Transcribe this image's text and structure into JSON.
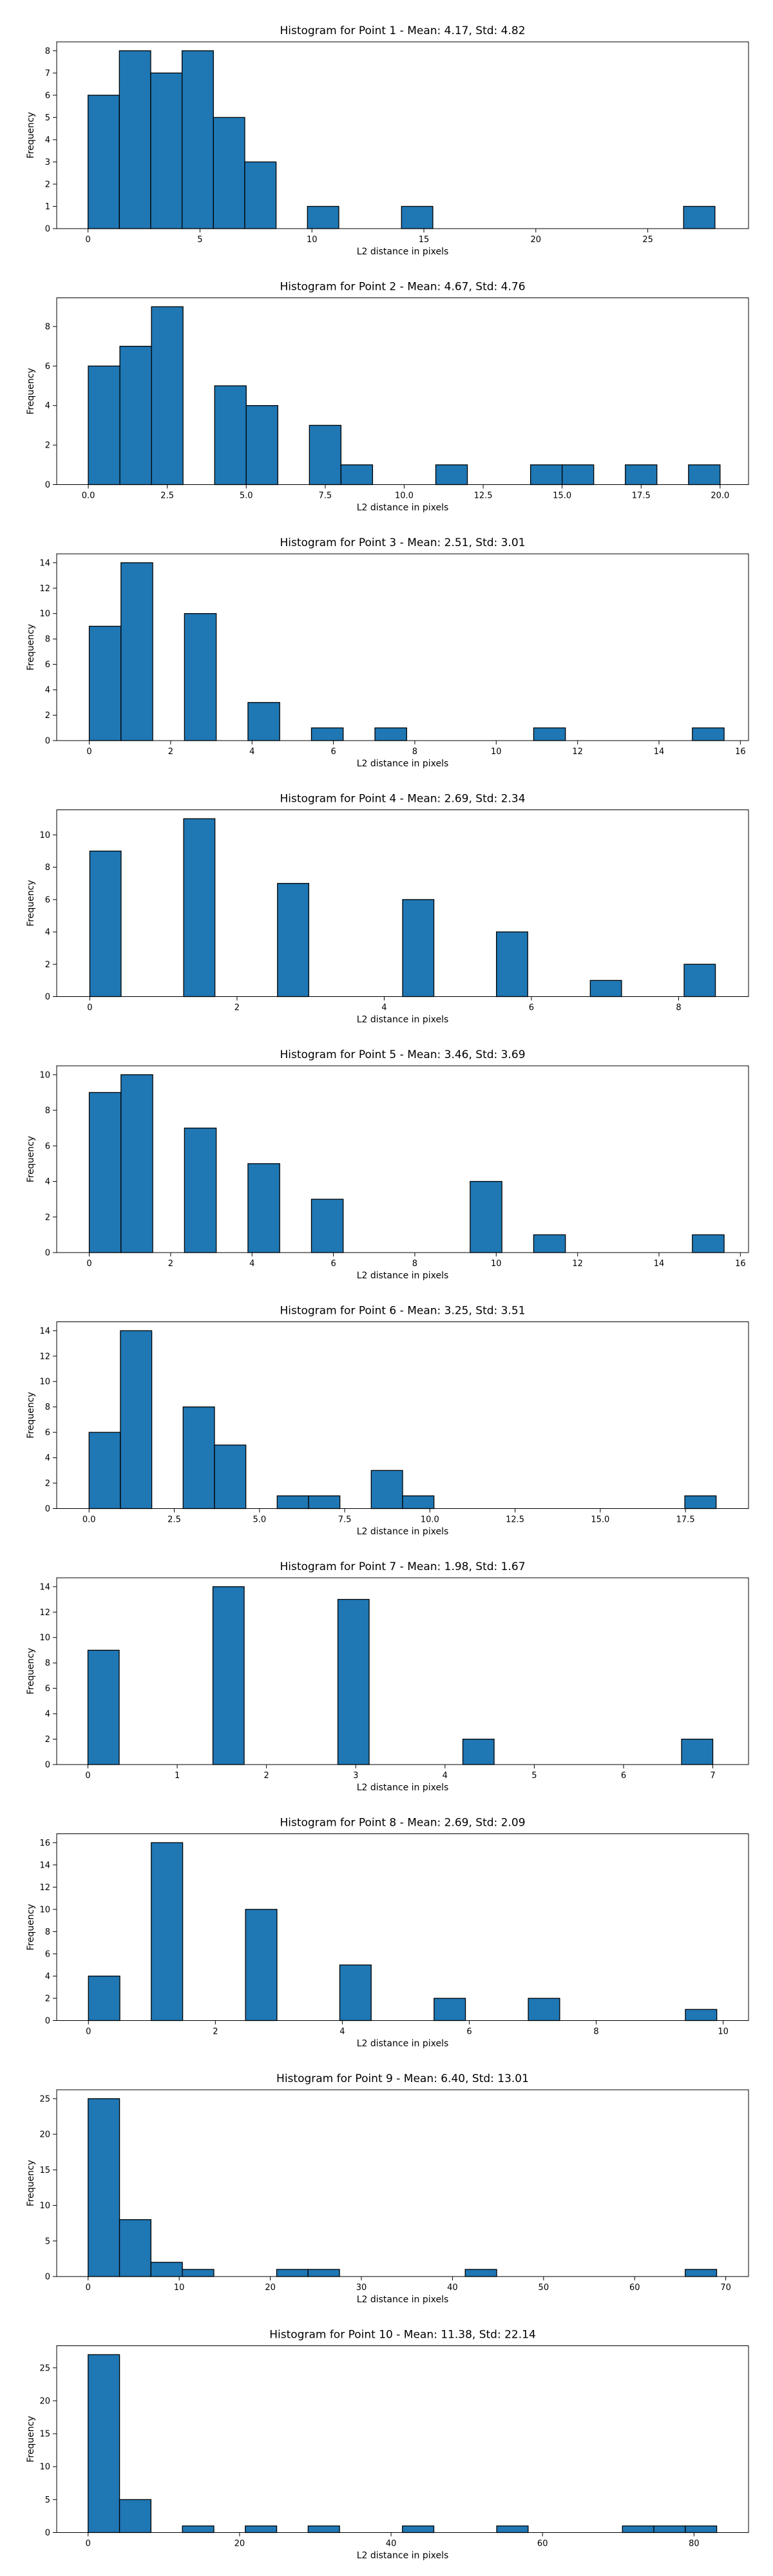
{
  "bar_color": "#1f77b4",
  "edge_color": "#000000",
  "chart_data": [
    {
      "type": "bar",
      "title": "Histogram for Point 1 - Mean: 4.17, Std: 4.82",
      "xlabel": "L2 distance in pixels",
      "ylabel": "Frequency",
      "xlim": [
        -1.4,
        29.5
      ],
      "ylim": [
        0,
        8.4
      ],
      "xticks": [
        0,
        5,
        10,
        15,
        20,
        25
      ],
      "xtick_labels": [
        "0",
        "5",
        "10",
        "15",
        "20",
        "25"
      ],
      "yticks": [
        0,
        1,
        2,
        3,
        4,
        5,
        6,
        7,
        8
      ],
      "ytick_labels": [
        "0",
        "1",
        "2",
        "3",
        "4",
        "5",
        "6",
        "7",
        "8"
      ],
      "bin_edges": [
        0,
        1.4,
        2.8,
        4.2,
        5.6,
        7.0,
        8.4,
        9.8,
        11.2,
        12.6,
        14.0,
        15.4,
        16.8,
        18.2,
        19.6,
        21.0,
        22.4,
        23.8,
        25.2,
        26.6,
        28.0
      ],
      "counts": [
        6,
        8,
        7,
        8,
        5,
        3,
        0,
        1,
        0,
        0,
        1,
        0,
        0,
        0,
        0,
        0,
        0,
        0,
        0,
        1
      ]
    },
    {
      "type": "bar",
      "title": "Histogram for Point 2 - Mean: 4.67, Std: 4.76",
      "xlabel": "L2 distance in pixels",
      "ylabel": "Frequency",
      "xlim": [
        -1.0,
        20.9
      ],
      "ylim": [
        0,
        9.45
      ],
      "xticks": [
        0,
        2.5,
        5,
        7.5,
        10,
        12.5,
        15,
        17.5,
        20
      ],
      "xtick_labels": [
        "0.0",
        "2.5",
        "5.0",
        "7.5",
        "10.0",
        "12.5",
        "15.0",
        "17.5",
        "20.0"
      ],
      "yticks": [
        0,
        2,
        4,
        6,
        8
      ],
      "ytick_labels": [
        "0",
        "2",
        "4",
        "6",
        "8"
      ],
      "bin_edges": [
        0,
        1.0,
        2.0,
        3.0,
        4.0,
        5.0,
        6.0,
        7.0,
        8.0,
        9.0,
        10.0,
        11.0,
        12.0,
        13.0,
        14.0,
        15.0,
        16.0,
        17.0,
        18.0,
        19.0,
        20.0
      ],
      "counts": [
        6,
        7,
        9,
        0,
        5,
        4,
        0,
        3,
        1,
        0,
        0,
        1,
        0,
        0,
        1,
        1,
        0,
        1,
        0,
        1
      ]
    },
    {
      "type": "bar",
      "title": "Histogram for Point 3 - Mean: 2.51, Std: 3.01",
      "xlabel": "L2 distance in pixels",
      "ylabel": "Frequency",
      "xlim": [
        -0.8,
        16.2
      ],
      "ylim": [
        0,
        14.7
      ],
      "xticks": [
        0,
        2,
        4,
        6,
        8,
        10,
        12,
        14,
        16
      ],
      "xtick_labels": [
        "0",
        "2",
        "4",
        "6",
        "8",
        "10",
        "12",
        "14",
        "16"
      ],
      "yticks": [
        0,
        2,
        4,
        6,
        8,
        10,
        12,
        14
      ],
      "ytick_labels": [
        "0",
        "2",
        "4",
        "6",
        "8",
        "10",
        "12",
        "14"
      ],
      "bin_edges": [
        0,
        0.78,
        1.56,
        2.34,
        3.12,
        3.9,
        4.68,
        5.46,
        6.24,
        7.02,
        7.8,
        8.58,
        9.36,
        10.14,
        10.92,
        11.7,
        12.48,
        13.26,
        14.04,
        14.82,
        15.6
      ],
      "counts": [
        9,
        14,
        0,
        10,
        0,
        3,
        0,
        1,
        0,
        1,
        0,
        0,
        0,
        0,
        1,
        0,
        0,
        0,
        0,
        1
      ]
    },
    {
      "type": "bar",
      "title": "Histogram for Point 4 - Mean: 2.69, Std: 2.34",
      "xlabel": "L2 distance in pixels",
      "ylabel": "Frequency",
      "xlim": [
        -0.45,
        8.95
      ],
      "ylim": [
        0,
        11.55
      ],
      "xticks": [
        0,
        2,
        4,
        6,
        8
      ],
      "xtick_labels": [
        "0",
        "2",
        "4",
        "6",
        "8"
      ],
      "yticks": [
        0,
        2,
        4,
        6,
        8,
        10
      ],
      "ytick_labels": [
        "0",
        "2",
        "4",
        "6",
        "8",
        "10"
      ],
      "bin_edges": [
        0,
        0.425,
        0.85,
        1.275,
        1.7,
        2.125,
        2.55,
        2.975,
        3.4,
        3.825,
        4.25,
        4.675,
        5.1,
        5.525,
        5.95,
        6.375,
        6.8,
        7.225,
        7.65,
        8.075,
        8.5
      ],
      "counts": [
        9,
        0,
        0,
        11,
        0,
        0,
        7,
        0,
        0,
        0,
        6,
        0,
        0,
        4,
        0,
        0,
        1,
        0,
        0,
        2
      ]
    },
    {
      "type": "bar",
      "title": "Histogram for Point 5 - Mean: 3.46, Std: 3.69",
      "xlabel": "L2 distance in pixels",
      "ylabel": "Frequency",
      "xlim": [
        -0.8,
        16.2
      ],
      "ylim": [
        0,
        10.5
      ],
      "xticks": [
        0,
        2,
        4,
        6,
        8,
        10,
        12,
        14,
        16
      ],
      "xtick_labels": [
        "0",
        "2",
        "4",
        "6",
        "8",
        "10",
        "12",
        "14",
        "16"
      ],
      "yticks": [
        0,
        2,
        4,
        6,
        8,
        10
      ],
      "ytick_labels": [
        "0",
        "2",
        "4",
        "6",
        "8",
        "10"
      ],
      "bin_edges": [
        0,
        0.78,
        1.56,
        2.34,
        3.12,
        3.9,
        4.68,
        5.46,
        6.24,
        7.02,
        7.8,
        8.58,
        9.36,
        10.14,
        10.92,
        11.7,
        12.48,
        13.26,
        14.04,
        14.82,
        15.6
      ],
      "counts": [
        9,
        10,
        0,
        7,
        0,
        5,
        0,
        3,
        0,
        0,
        0,
        0,
        4,
        0,
        1,
        0,
        0,
        0,
        0,
        1
      ]
    },
    {
      "type": "bar",
      "title": "Histogram for Point 6 - Mean: 3.25, Std: 3.51",
      "xlabel": "L2 distance in pixels",
      "ylabel": "Frequency",
      "xlim": [
        -0.95,
        19.35
      ],
      "ylim": [
        0,
        14.7
      ],
      "xticks": [
        0,
        2.5,
        5,
        7.5,
        10,
        12.5,
        15,
        17.5
      ],
      "xtick_labels": [
        "0.0",
        "2.5",
        "5.0",
        "7.5",
        "10.0",
        "12.5",
        "15.0",
        "17.5"
      ],
      "yticks": [
        0,
        2,
        4,
        6,
        8,
        10,
        12,
        14
      ],
      "ytick_labels": [
        "0",
        "2",
        "4",
        "6",
        "8",
        "10",
        "12",
        "14"
      ],
      "bin_edges": [
        0,
        0.92,
        1.84,
        2.76,
        3.68,
        4.6,
        5.52,
        6.44,
        7.36,
        8.28,
        9.2,
        10.12,
        11.04,
        11.96,
        12.88,
        13.8,
        14.72,
        15.64,
        16.56,
        17.48,
        18.4
      ],
      "counts": [
        6,
        14,
        0,
        8,
        5,
        0,
        1,
        1,
        0,
        3,
        1,
        0,
        0,
        0,
        0,
        0,
        0,
        0,
        0,
        1
      ]
    },
    {
      "type": "bar",
      "title": "Histogram for Point 7 - Mean: 1.98, Std: 1.67",
      "xlabel": "L2 distance in pixels",
      "ylabel": "Frequency",
      "xlim": [
        -0.35,
        7.4
      ],
      "ylim": [
        0,
        14.7
      ],
      "xticks": [
        0,
        1,
        2,
        3,
        4,
        5,
        6,
        7
      ],
      "xtick_labels": [
        "0",
        "1",
        "2",
        "3",
        "4",
        "5",
        "6",
        "7"
      ],
      "yticks": [
        0,
        2,
        4,
        6,
        8,
        10,
        12,
        14
      ],
      "ytick_labels": [
        "0",
        "2",
        "4",
        "6",
        "8",
        "10",
        "12",
        "14"
      ],
      "bin_edges": [
        0,
        0.35,
        0.7,
        1.05,
        1.4,
        1.75,
        2.1,
        2.45,
        2.8,
        3.15,
        3.5,
        3.85,
        4.2,
        4.55,
        4.9,
        5.25,
        5.6,
        5.95,
        6.3,
        6.65,
        7.0
      ],
      "counts": [
        9,
        0,
        0,
        0,
        14,
        0,
        0,
        0,
        13,
        0,
        0,
        0,
        2,
        0,
        0,
        0,
        0,
        0,
        0,
        2
      ]
    },
    {
      "type": "bar",
      "title": "Histogram for Point 8 - Mean: 2.69, Std: 2.09",
      "xlabel": "L2 distance in pixels",
      "ylabel": "Frequency",
      "xlim": [
        -0.5,
        10.4
      ],
      "ylim": [
        0,
        16.8
      ],
      "xticks": [
        0,
        2,
        4,
        6,
        8,
        10
      ],
      "xtick_labels": [
        "0",
        "2",
        "4",
        "6",
        "8",
        "10"
      ],
      "yticks": [
        0,
        2,
        4,
        6,
        8,
        10,
        12,
        14,
        16
      ],
      "ytick_labels": [
        "0",
        "2",
        "4",
        "6",
        "8",
        "10",
        "12",
        "14",
        "16"
      ],
      "bin_edges": [
        0,
        0.495,
        0.99,
        1.485,
        1.98,
        2.475,
        2.97,
        3.465,
        3.96,
        4.455,
        4.95,
        5.445,
        5.94,
        6.435,
        6.93,
        7.425,
        7.92,
        8.415,
        8.91,
        9.405,
        9.9
      ],
      "counts": [
        4,
        0,
        16,
        0,
        0,
        10,
        0,
        0,
        5,
        0,
        0,
        2,
        0,
        0,
        2,
        0,
        0,
        0,
        0,
        1
      ]
    },
    {
      "type": "bar",
      "title": "Histogram for Point 9 - Mean: 6.40, Std: 13.01",
      "xlabel": "L2 distance in pixels",
      "ylabel": "Frequency",
      "xlim": [
        -3.45,
        72.5
      ],
      "ylim": [
        0,
        26.25
      ],
      "xticks": [
        0,
        10,
        20,
        30,
        40,
        50,
        60,
        70
      ],
      "xtick_labels": [
        "0",
        "10",
        "20",
        "30",
        "40",
        "50",
        "60",
        "70"
      ],
      "yticks": [
        0,
        5,
        10,
        15,
        20,
        25
      ],
      "ytick_labels": [
        "0",
        "5",
        "10",
        "15",
        "20",
        "25"
      ],
      "bin_edges": [
        0,
        3.45,
        6.9,
        10.35,
        13.8,
        17.25,
        20.7,
        24.15,
        27.6,
        31.05,
        34.5,
        37.95,
        41.4,
        44.85,
        48.3,
        51.75,
        55.2,
        58.65,
        62.1,
        65.55,
        69.0
      ],
      "counts": [
        25,
        8,
        2,
        1,
        0,
        0,
        1,
        1,
        0,
        0,
        0,
        0,
        1,
        0,
        0,
        0,
        0,
        0,
        0,
        1
      ]
    },
    {
      "type": "bar",
      "title": "Histogram for Point 10 - Mean: 11.38, Std: 22.14",
      "xlabel": "L2 distance in pixels",
      "ylabel": "Frequency",
      "xlim": [
        -4.15,
        87.2
      ],
      "ylim": [
        0,
        28.35
      ],
      "xticks": [
        0,
        20,
        40,
        60,
        80
      ],
      "xtick_labels": [
        "0",
        "20",
        "40",
        "60",
        "80"
      ],
      "yticks": [
        0,
        5,
        10,
        15,
        20,
        25
      ],
      "ytick_labels": [
        "0",
        "5",
        "10",
        "15",
        "20",
        "25"
      ],
      "bin_edges": [
        0,
        4.15,
        8.3,
        12.45,
        16.6,
        20.75,
        24.9,
        29.05,
        33.2,
        37.35,
        41.5,
        45.65,
        49.8,
        53.95,
        58.1,
        62.25,
        66.4,
        70.55,
        74.7,
        78.85,
        83.0
      ],
      "counts": [
        27,
        5,
        0,
        1,
        0,
        1,
        0,
        1,
        0,
        0,
        1,
        0,
        0,
        1,
        0,
        0,
        0,
        1,
        1,
        1
      ]
    }
  ]
}
